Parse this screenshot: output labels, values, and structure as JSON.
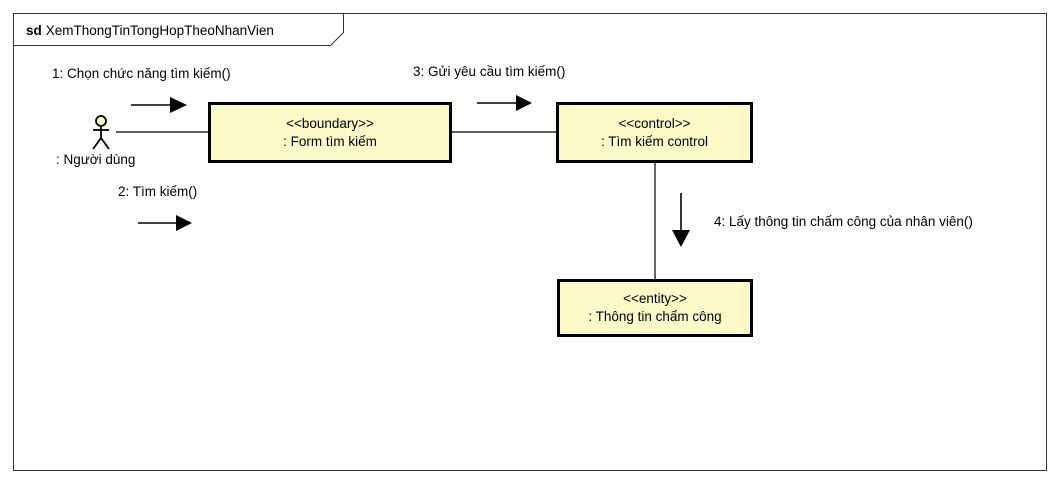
{
  "frame": {
    "keyword": "sd",
    "name": "XemThongTinTongHopTheoNhanVien"
  },
  "actor": {
    "name": ": Người dùng"
  },
  "objects": {
    "form": {
      "stereotype": "<<boundary>>",
      "name": ": Form tìm kiếm"
    },
    "control": {
      "stereotype": "<<control>>",
      "name": ": Tìm kiếm control"
    },
    "entity": {
      "stereotype": "<<entity>>",
      "name": ": Thông tin chấm công"
    }
  },
  "messages": {
    "m1": "1: Chọn chức năng tìm kiếm()",
    "m2": "2: Tìm kiếm()",
    "m3": "3: Gửi yêu cầu tìm kiếm()",
    "m4": "4: Lấy thông tin chấm công của nhân viên()"
  },
  "colors": {
    "object_fill": "#fcfac8",
    "actor_head_fill": "#fcfac8",
    "stroke": "#000000",
    "frame_stroke": "#333333"
  }
}
